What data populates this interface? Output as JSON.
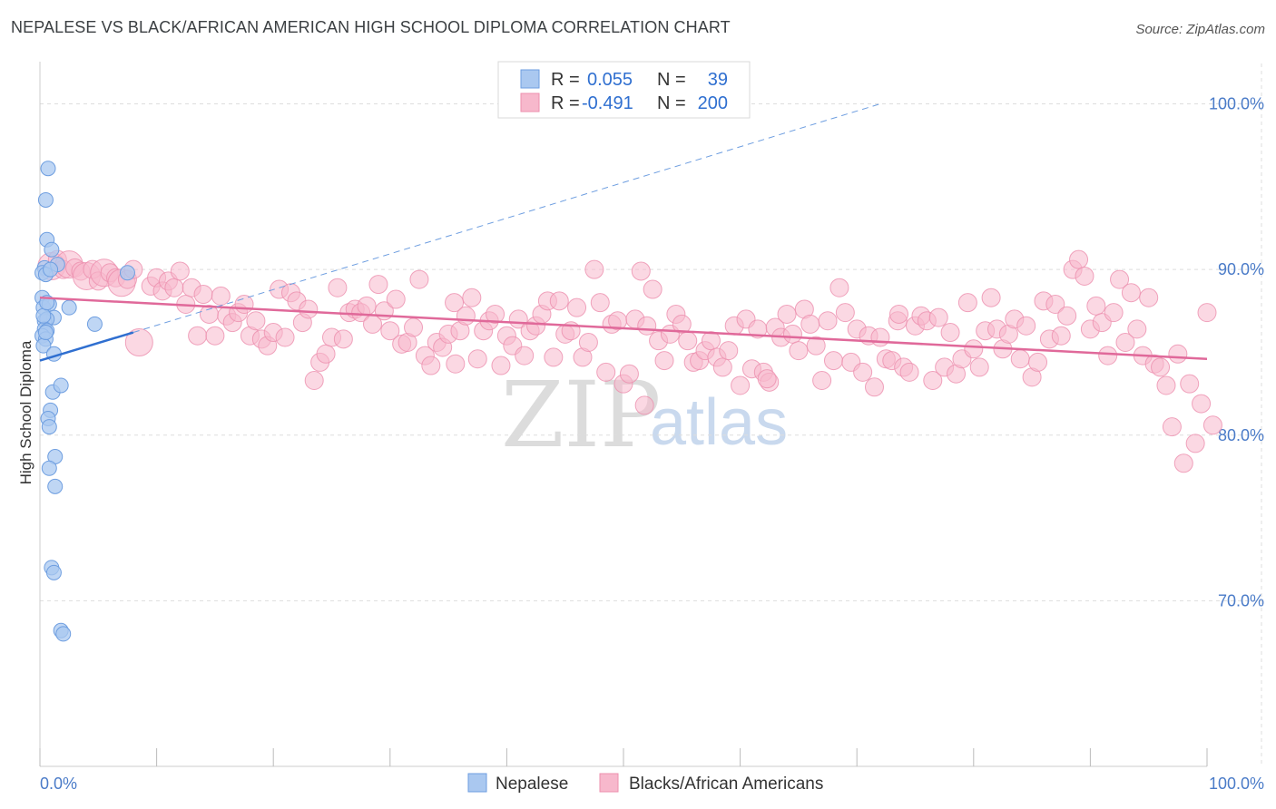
{
  "title": "NEPALESE VS BLACK/AFRICAN AMERICAN HIGH SCHOOL DIPLOMA CORRELATION CHART",
  "source": "Source: ZipAtlas.com",
  "watermark": {
    "zip": "ZIP",
    "atlas": "atlas"
  },
  "colors": {
    "nepalese_fill": "#aac8f0",
    "nepalese_stroke": "#6e9ee0",
    "nepalese_line": "#2f6fd0",
    "black_fill": "#f7b8cc",
    "black_stroke": "#ec8fae",
    "black_line": "#e0699a",
    "grid": "#dddddd",
    "tick_text": "#4a7bc8"
  },
  "legend": {
    "rows": [
      {
        "r_label": "R =",
        "r_value": "0.055",
        "n_label": "N =",
        "n_value": "39"
      },
      {
        "r_label": "R =",
        "r_value": "-0.491",
        "n_label": "N =",
        "n_value": "200"
      }
    ]
  },
  "bottom_legend": [
    "Nepalese",
    "Blacks/African Americans"
  ],
  "chart_data": {
    "type": "scatter",
    "ylabel": "High School Diploma",
    "xlabel": "",
    "xlim": [
      0,
      100
    ],
    "ylim": [
      60,
      102
    ],
    "y_ticks": [
      "100.0%",
      "90.0%",
      "80.0%",
      "70.0%"
    ],
    "y_tick_values": [
      100,
      90,
      80,
      70
    ],
    "x_ticks": [
      "0.0%",
      "100.0%"
    ],
    "grid": "horizontal dashed",
    "legend_position": "top-center",
    "series": [
      {
        "name": "Nepalese",
        "r": 0.055,
        "n": 39,
        "trend": {
          "x": [
            0,
            8
          ],
          "y": [
            84.5,
            86.2
          ],
          "dashed_to": [
            72,
            100
          ]
        },
        "points": [
          [
            0.7,
            96.1
          ],
          [
            0.5,
            94.2
          ],
          [
            0.6,
            91.8
          ],
          [
            1.0,
            91.2
          ],
          [
            0.4,
            90.1
          ],
          [
            0.2,
            89.8
          ],
          [
            0.5,
            89.7
          ],
          [
            1.5,
            90.3
          ],
          [
            7.5,
            89.8
          ],
          [
            0.2,
            88.3
          ],
          [
            0.3,
            87.7
          ],
          [
            0.8,
            87.9
          ],
          [
            2.5,
            87.7
          ],
          [
            1.2,
            87.1
          ],
          [
            0.4,
            86.9
          ],
          [
            0.6,
            87.0
          ],
          [
            4.7,
            86.7
          ],
          [
            0.4,
            86.4
          ],
          [
            0.6,
            86.3
          ],
          [
            0.2,
            86.0
          ],
          [
            0.5,
            85.8
          ],
          [
            0.3,
            85.4
          ],
          [
            1.2,
            84.9
          ],
          [
            1.1,
            82.6
          ],
          [
            1.8,
            83.0
          ],
          [
            0.9,
            81.5
          ],
          [
            0.7,
            81.0
          ],
          [
            0.8,
            80.5
          ],
          [
            1.3,
            78.7
          ],
          [
            0.8,
            78.0
          ],
          [
            1.3,
            76.9
          ],
          [
            1.0,
            72.0
          ],
          [
            1.2,
            71.7
          ],
          [
            1.8,
            68.2
          ],
          [
            2.0,
            68.0
          ],
          [
            0.5,
            86.2
          ],
          [
            0.3,
            87.2
          ],
          [
            0.6,
            88.0
          ],
          [
            0.9,
            90.0
          ]
        ]
      },
      {
        "name": "Blacks/African Americans",
        "r": -0.491,
        "n": 200,
        "trend": {
          "x": [
            0,
            100
          ],
          "y": [
            88.3,
            84.6
          ]
        },
        "points": [
          [
            1,
            90.2
          ],
          [
            1.5,
            90.6
          ],
          [
            2,
            90.0
          ],
          [
            2.5,
            90.3
          ],
          [
            3,
            90.1
          ],
          [
            3.5,
            89.9
          ],
          [
            4,
            89.6
          ],
          [
            4.5,
            90.0
          ],
          [
            5,
            89.3
          ],
          [
            5.5,
            89.8
          ],
          [
            6,
            89.8
          ],
          [
            6.5,
            89.5
          ],
          [
            7,
            89.2
          ],
          [
            7.5,
            89.4
          ],
          [
            8,
            90.0
          ],
          [
            8.5,
            85.6
          ],
          [
            9.5,
            89.0
          ],
          [
            10,
            89.5
          ],
          [
            10.5,
            88.7
          ],
          [
            11,
            89.3
          ],
          [
            11.5,
            88.9
          ],
          [
            12,
            89.9
          ],
          [
            12.5,
            87.9
          ],
          [
            13,
            88.9
          ],
          [
            13.5,
            86.0
          ],
          [
            14,
            88.5
          ],
          [
            14.5,
            87.3
          ],
          [
            15,
            86.0
          ],
          [
            15.5,
            88.4
          ],
          [
            16,
            87.2
          ],
          [
            16.5,
            86.8
          ],
          [
            17,
            87.4
          ],
          [
            17.5,
            87.9
          ],
          [
            18,
            86.0
          ],
          [
            18.5,
            86.9
          ],
          [
            19,
            85.8
          ],
          [
            19.5,
            85.4
          ],
          [
            20,
            86.2
          ],
          [
            20.5,
            88.8
          ],
          [
            21,
            85.9
          ],
          [
            21.5,
            88.6
          ],
          [
            22,
            88.1
          ],
          [
            22.5,
            86.8
          ],
          [
            23,
            87.6
          ],
          [
            23.5,
            83.3
          ],
          [
            24,
            84.4
          ],
          [
            24.5,
            84.9
          ],
          [
            25,
            85.9
          ],
          [
            25.5,
            88.9
          ],
          [
            26,
            85.8
          ],
          [
            26.5,
            87.4
          ],
          [
            27,
            87.6
          ],
          [
            27.5,
            87.4
          ],
          [
            28,
            87.8
          ],
          [
            28.5,
            86.7
          ],
          [
            29,
            89.1
          ],
          [
            29.5,
            87.5
          ],
          [
            30,
            86.3
          ],
          [
            30.5,
            88.2
          ],
          [
            31,
            85.5
          ],
          [
            31.5,
            85.6
          ],
          [
            32,
            86.5
          ],
          [
            32.5,
            89.4
          ],
          [
            33,
            84.8
          ],
          [
            33.5,
            84.2
          ],
          [
            34,
            85.6
          ],
          [
            34.5,
            85.3
          ],
          [
            35,
            86.1
          ],
          [
            35.5,
            88.0
          ],
          [
            36,
            86.3
          ],
          [
            36.5,
            87.2
          ],
          [
            37,
            88.3
          ],
          [
            37.5,
            84.6
          ],
          [
            38,
            86.3
          ],
          [
            38.5,
            86.9
          ],
          [
            39,
            87.3
          ],
          [
            39.5,
            84.2
          ],
          [
            40,
            86.0
          ],
          [
            40.5,
            85.4
          ],
          [
            41,
            87.0
          ],
          [
            41.5,
            84.8
          ],
          [
            42,
            86.3
          ],
          [
            42.5,
            86.6
          ],
          [
            43,
            87.3
          ],
          [
            43.5,
            88.1
          ],
          [
            44,
            84.7
          ],
          [
            44.5,
            88.1
          ],
          [
            45,
            86.1
          ],
          [
            45.5,
            86.3
          ],
          [
            46,
            87.7
          ],
          [
            46.5,
            84.7
          ],
          [
            47,
            85.6
          ],
          [
            47.5,
            90.0
          ],
          [
            48,
            88.0
          ],
          [
            48.5,
            83.8
          ],
          [
            49,
            86.7
          ],
          [
            49.5,
            86.9
          ],
          [
            50,
            83.1
          ],
          [
            50.5,
            83.7
          ],
          [
            51,
            87.0
          ],
          [
            51.5,
            89.9
          ],
          [
            52,
            86.6
          ],
          [
            52.5,
            88.8
          ],
          [
            53,
            85.7
          ],
          [
            53.5,
            84.5
          ],
          [
            54,
            86.1
          ],
          [
            54.5,
            87.3
          ],
          [
            55,
            86.7
          ],
          [
            55.5,
            85.7
          ],
          [
            56,
            84.4
          ],
          [
            56.5,
            84.5
          ],
          [
            57,
            85.1
          ],
          [
            57.5,
            85.7
          ],
          [
            58,
            84.7
          ],
          [
            58.5,
            84.1
          ],
          [
            59,
            85.1
          ],
          [
            59.5,
            86.6
          ],
          [
            60,
            83.0
          ],
          [
            60.5,
            87.0
          ],
          [
            61,
            84.0
          ],
          [
            61.5,
            86.4
          ],
          [
            62,
            83.8
          ],
          [
            62.5,
            83.2
          ],
          [
            63,
            86.5
          ],
          [
            63.5,
            85.9
          ],
          [
            64,
            87.3
          ],
          [
            64.5,
            86.1
          ],
          [
            65,
            85.1
          ],
          [
            65.5,
            87.6
          ],
          [
            66,
            86.7
          ],
          [
            66.5,
            85.4
          ],
          [
            67,
            83.3
          ],
          [
            67.5,
            86.9
          ],
          [
            68,
            84.5
          ],
          [
            68.5,
            88.9
          ],
          [
            69,
            87.4
          ],
          [
            69.5,
            84.4
          ],
          [
            70,
            86.4
          ],
          [
            70.5,
            83.8
          ],
          [
            71,
            86.0
          ],
          [
            71.5,
            82.9
          ],
          [
            72,
            85.9
          ],
          [
            72.5,
            84.6
          ],
          [
            73,
            84.5
          ],
          [
            73.5,
            86.9
          ],
          [
            74,
            84.1
          ],
          [
            74.5,
            83.8
          ],
          [
            75,
            86.6
          ],
          [
            75.5,
            87.2
          ],
          [
            76,
            86.9
          ],
          [
            76.5,
            83.3
          ],
          [
            77,
            87.1
          ],
          [
            77.5,
            84.1
          ],
          [
            78,
            86.2
          ],
          [
            78.5,
            83.7
          ],
          [
            79,
            84.6
          ],
          [
            79.5,
            88.0
          ],
          [
            80,
            85.2
          ],
          [
            80.5,
            84.1
          ],
          [
            81,
            86.3
          ],
          [
            81.5,
            88.3
          ],
          [
            82,
            86.4
          ],
          [
            82.5,
            85.2
          ],
          [
            83,
            86.1
          ],
          [
            83.5,
            87.0
          ],
          [
            84,
            84.6
          ],
          [
            84.5,
            86.6
          ],
          [
            85,
            83.5
          ],
          [
            85.5,
            84.4
          ],
          [
            86,
            88.1
          ],
          [
            86.5,
            85.8
          ],
          [
            87,
            87.9
          ],
          [
            87.5,
            86.0
          ],
          [
            88,
            87.2
          ],
          [
            88.5,
            90.0
          ],
          [
            89,
            90.6
          ],
          [
            89.5,
            89.6
          ],
          [
            90,
            86.4
          ],
          [
            90.5,
            87.8
          ],
          [
            91,
            86.8
          ],
          [
            91.5,
            84.8
          ],
          [
            92,
            87.4
          ],
          [
            92.5,
            89.4
          ],
          [
            93,
            85.6
          ],
          [
            93.5,
            88.6
          ],
          [
            94,
            86.4
          ],
          [
            94.5,
            84.8
          ],
          [
            95,
            88.3
          ],
          [
            95.5,
            84.3
          ],
          [
            96,
            84.1
          ],
          [
            96.5,
            83.0
          ],
          [
            97,
            80.5
          ],
          [
            97.5,
            84.9
          ],
          [
            98,
            78.3
          ],
          [
            98.5,
            83.1
          ],
          [
            99,
            79.5
          ],
          [
            99.5,
            81.9
          ],
          [
            100,
            87.4
          ],
          [
            100.5,
            80.6
          ],
          [
            73.6,
            87.3
          ],
          [
            62.3,
            83.4
          ],
          [
            51.8,
            81.8
          ],
          [
            35.6,
            84.3
          ]
        ]
      }
    ]
  }
}
